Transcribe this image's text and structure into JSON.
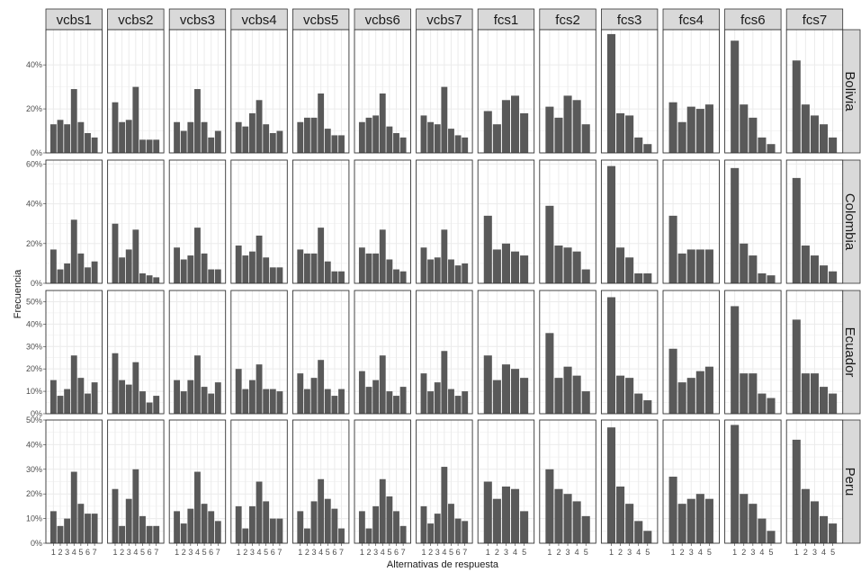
{
  "chart_data": {
    "type": "bar",
    "facet_type": "grid",
    "xlabel": "Alternativas de respuesta",
    "ylabel": "Frecuencia",
    "grid": true,
    "y_scale": "free per row",
    "x_scale": "free per column",
    "columns": [
      {
        "label": "vcbs1",
        "categories": [
          "1",
          "2",
          "3",
          "4",
          "5",
          "6",
          "7"
        ]
      },
      {
        "label": "vcbs2",
        "categories": [
          "1",
          "2",
          "3",
          "4",
          "5",
          "6",
          "7"
        ]
      },
      {
        "label": "vcbs3",
        "categories": [
          "1",
          "2",
          "3",
          "4",
          "5",
          "6",
          "7"
        ]
      },
      {
        "label": "vcbs4",
        "categories": [
          "1",
          "2",
          "3",
          "4",
          "5",
          "6",
          "7"
        ]
      },
      {
        "label": "vcbs5",
        "categories": [
          "1",
          "2",
          "3",
          "4",
          "5",
          "6",
          "7"
        ]
      },
      {
        "label": "vcbs6",
        "categories": [
          "1",
          "2",
          "3",
          "4",
          "5",
          "6",
          "7"
        ]
      },
      {
        "label": "vcbs7",
        "categories": [
          "1",
          "2",
          "3",
          "4",
          "5",
          "6",
          "7"
        ]
      },
      {
        "label": "fcs1",
        "categories": [
          "1",
          "2",
          "3",
          "4",
          "5"
        ]
      },
      {
        "label": "fcs2",
        "categories": [
          "1",
          "2",
          "3",
          "4",
          "5"
        ]
      },
      {
        "label": "fcs3",
        "categories": [
          "1",
          "2",
          "3",
          "4",
          "5"
        ]
      },
      {
        "label": "fcs4",
        "categories": [
          "1",
          "2",
          "3",
          "4",
          "5"
        ]
      },
      {
        "label": "fcs6",
        "categories": [
          "1",
          "2",
          "3",
          "4",
          "5"
        ]
      },
      {
        "label": "fcs7",
        "categories": [
          "1",
          "2",
          "3",
          "4",
          "5"
        ]
      }
    ],
    "rows": [
      {
        "label": "Bolivia",
        "ylim": [
          0,
          0.56
        ],
        "yticks": [
          0,
          0.2,
          0.4
        ],
        "ytick_labels": [
          "0%",
          "20%",
          "40%"
        ],
        "values": [
          [
            0.13,
            0.15,
            0.13,
            0.29,
            0.14,
            0.09,
            0.07
          ],
          [
            0.23,
            0.14,
            0.15,
            0.3,
            0.06,
            0.06,
            0.06
          ],
          [
            0.14,
            0.1,
            0.14,
            0.29,
            0.14,
            0.07,
            0.1
          ],
          [
            0.14,
            0.12,
            0.18,
            0.24,
            0.13,
            0.09,
            0.1
          ],
          [
            0.14,
            0.16,
            0.16,
            0.27,
            0.11,
            0.08,
            0.08
          ],
          [
            0.14,
            0.16,
            0.17,
            0.27,
            0.12,
            0.09,
            0.07
          ],
          [
            0.17,
            0.14,
            0.13,
            0.3,
            0.11,
            0.08,
            0.07
          ],
          [
            0.19,
            0.13,
            0.24,
            0.26,
            0.18
          ],
          [
            0.21,
            0.16,
            0.26,
            0.24,
            0.13
          ],
          [
            0.54,
            0.18,
            0.17,
            0.07,
            0.04
          ],
          [
            0.23,
            0.14,
            0.21,
            0.2,
            0.22
          ],
          [
            0.51,
            0.22,
            0.16,
            0.07,
            0.04
          ],
          [
            0.42,
            0.22,
            0.17,
            0.13,
            0.07
          ]
        ]
      },
      {
        "label": "Colombia",
        "ylim": [
          0,
          0.62
        ],
        "yticks": [
          0,
          0.2,
          0.4,
          0.6
        ],
        "ytick_labels": [
          "0%",
          "20%",
          "40%",
          "60%"
        ],
        "values": [
          [
            0.17,
            0.07,
            0.1,
            0.32,
            0.15,
            0.08,
            0.11
          ],
          [
            0.3,
            0.13,
            0.17,
            0.27,
            0.05,
            0.04,
            0.03
          ],
          [
            0.18,
            0.12,
            0.14,
            0.28,
            0.15,
            0.07,
            0.07
          ],
          [
            0.19,
            0.14,
            0.16,
            0.24,
            0.13,
            0.08,
            0.08
          ],
          [
            0.17,
            0.15,
            0.15,
            0.28,
            0.11,
            0.06,
            0.06
          ],
          [
            0.18,
            0.15,
            0.15,
            0.27,
            0.12,
            0.07,
            0.06
          ],
          [
            0.18,
            0.12,
            0.13,
            0.27,
            0.12,
            0.09,
            0.1
          ],
          [
            0.34,
            0.17,
            0.2,
            0.16,
            0.14
          ],
          [
            0.39,
            0.19,
            0.18,
            0.16,
            0.07
          ],
          [
            0.59,
            0.18,
            0.13,
            0.05,
            0.05
          ],
          [
            0.34,
            0.15,
            0.17,
            0.17,
            0.17
          ],
          [
            0.58,
            0.2,
            0.14,
            0.05,
            0.04
          ],
          [
            0.53,
            0.19,
            0.14,
            0.09,
            0.06
          ]
        ]
      },
      {
        "label": "Ecuador",
        "ylim": [
          0,
          0.55
        ],
        "yticks": [
          0,
          0.1,
          0.2,
          0.3,
          0.4,
          0.5
        ],
        "ytick_labels": [
          "0%",
          "10%",
          "20%",
          "30%",
          "40%",
          "50%"
        ],
        "values": [
          [
            0.15,
            0.08,
            0.11,
            0.26,
            0.16,
            0.09,
            0.14
          ],
          [
            0.27,
            0.15,
            0.13,
            0.23,
            0.1,
            0.05,
            0.08
          ],
          [
            0.15,
            0.1,
            0.15,
            0.26,
            0.12,
            0.09,
            0.14
          ],
          [
            0.2,
            0.11,
            0.15,
            0.22,
            0.11,
            0.11,
            0.1
          ],
          [
            0.18,
            0.11,
            0.16,
            0.24,
            0.11,
            0.08,
            0.11
          ],
          [
            0.19,
            0.12,
            0.15,
            0.26,
            0.1,
            0.08,
            0.12
          ],
          [
            0.18,
            0.1,
            0.14,
            0.28,
            0.11,
            0.08,
            0.1
          ],
          [
            0.26,
            0.15,
            0.22,
            0.2,
            0.16
          ],
          [
            0.36,
            0.16,
            0.21,
            0.17,
            0.1
          ],
          [
            0.52,
            0.17,
            0.16,
            0.09,
            0.06
          ],
          [
            0.29,
            0.14,
            0.16,
            0.19,
            0.21
          ],
          [
            0.48,
            0.18,
            0.18,
            0.09,
            0.07
          ],
          [
            0.42,
            0.18,
            0.18,
            0.12,
            0.09
          ]
        ]
      },
      {
        "label": "Peru",
        "ylim": [
          0,
          0.5
        ],
        "yticks": [
          0,
          0.1,
          0.2,
          0.3,
          0.4,
          0.5
        ],
        "ytick_labels": [
          "0%",
          "10%",
          "20%",
          "30%",
          "40%",
          "50%"
        ],
        "values": [
          [
            0.13,
            0.07,
            0.1,
            0.29,
            0.16,
            0.12,
            0.12
          ],
          [
            0.22,
            0.07,
            0.18,
            0.3,
            0.11,
            0.07,
            0.07
          ],
          [
            0.13,
            0.08,
            0.14,
            0.29,
            0.16,
            0.13,
            0.09
          ],
          [
            0.15,
            0.06,
            0.15,
            0.25,
            0.17,
            0.1,
            0.1
          ],
          [
            0.13,
            0.06,
            0.17,
            0.26,
            0.18,
            0.14,
            0.06
          ],
          [
            0.13,
            0.06,
            0.15,
            0.26,
            0.19,
            0.13,
            0.07
          ],
          [
            0.15,
            0.08,
            0.12,
            0.31,
            0.16,
            0.1,
            0.09
          ],
          [
            0.25,
            0.18,
            0.23,
            0.22,
            0.13
          ],
          [
            0.3,
            0.22,
            0.2,
            0.17,
            0.11
          ],
          [
            0.47,
            0.23,
            0.16,
            0.09,
            0.05
          ],
          [
            0.27,
            0.16,
            0.18,
            0.2,
            0.18
          ],
          [
            0.48,
            0.2,
            0.16,
            0.1,
            0.05
          ],
          [
            0.42,
            0.22,
            0.17,
            0.11,
            0.08
          ]
        ]
      }
    ],
    "colors": {
      "bar": "#595959",
      "panel_background": "#ffffff",
      "panel_border": "#333333",
      "gridline": "#ebebeb",
      "strip_background": "#d9d9d9",
      "tick_text": "#4d4d4d",
      "label_text": "#1a1a1a"
    }
  }
}
